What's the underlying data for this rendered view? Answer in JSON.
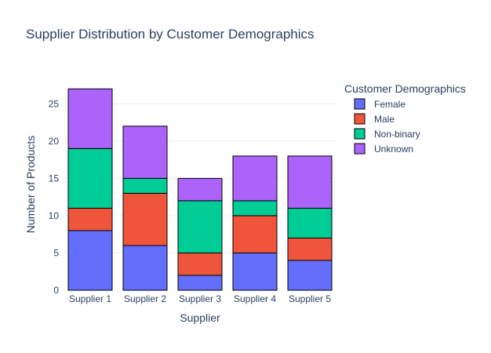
{
  "chart_data": {
    "type": "bar",
    "barmode": "stack",
    "title": "Supplier Distribution by Customer Demographics",
    "xlabel": "Supplier",
    "ylabel": "Number of Products",
    "categories": [
      "Supplier 1",
      "Supplier 2",
      "Supplier 3",
      "Supplier 4",
      "Supplier 5"
    ],
    "ylim": [
      0,
      28.4
    ],
    "yticks": [
      0,
      5,
      10,
      15,
      20,
      25
    ],
    "grid": true,
    "legend_title": "Customer Demographics",
    "legend_position": "top-right",
    "series": [
      {
        "name": "Female",
        "color": "#636efa",
        "values": [
          8,
          6,
          2,
          5,
          4
        ]
      },
      {
        "name": "Male",
        "color": "#ef553b",
        "values": [
          3,
          7,
          3,
          5,
          3
        ]
      },
      {
        "name": "Non-binary",
        "color": "#00cc96",
        "values": [
          8,
          2,
          7,
          2,
          4
        ]
      },
      {
        "name": "Unknown",
        "color": "#ab63fa",
        "values": [
          8,
          7,
          3,
          6,
          7
        ]
      }
    ]
  }
}
